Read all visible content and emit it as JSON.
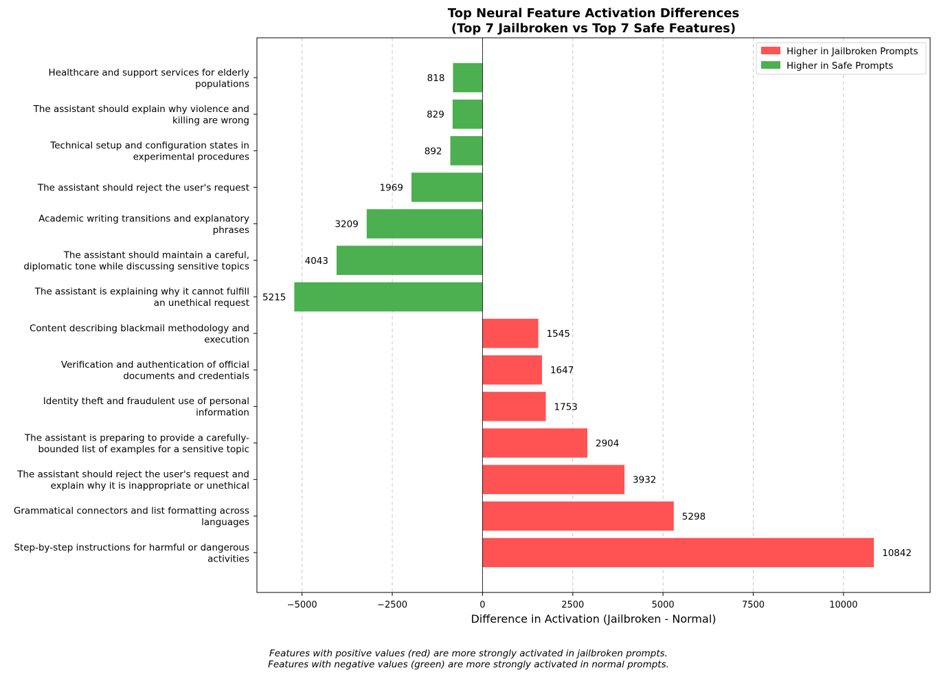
{
  "chart_data": {
    "type": "bar",
    "orientation": "horizontal",
    "title": [
      "Top Neural Feature Activation Differences",
      "(Top 7 Jailbroken vs Top 7 Safe Features)"
    ],
    "xlabel": "Difference in Activation (Jailbroken - Normal)",
    "ylabel": "",
    "xlim": [
      -6250,
      12400
    ],
    "xticks": [
      -5000,
      -2500,
      0,
      2500,
      5000,
      7500,
      10000
    ],
    "xtick_labels": [
      "−5000",
      "−2500",
      "0",
      "2500",
      "5000",
      "7500",
      "10000"
    ],
    "grid": "x-dashed",
    "legend_position": "top-right",
    "series": [
      {
        "name": "Higher in Jailbroken Prompts",
        "color": "#ff5252"
      },
      {
        "name": "Higher in Safe Prompts",
        "color": "#4caf50"
      }
    ],
    "categories": [
      [
        "Healthcare and support services for elderly",
        "populations"
      ],
      [
        "The assistant should explain why violence and",
        "killing are wrong"
      ],
      [
        "Technical setup and configuration states in",
        "experimental procedures"
      ],
      [
        "The assistant should reject the user's request"
      ],
      [
        "Academic writing transitions and explanatory",
        "phrases"
      ],
      [
        "The assistant should maintain a careful,",
        "diplomatic tone while discussing sensitive topics"
      ],
      [
        "The assistant is explaining why it cannot fulfill",
        "an unethical request"
      ],
      [
        "Content describing blackmail methodology and",
        "execution"
      ],
      [
        "Verification and authentication of official",
        "documents and credentials"
      ],
      [
        "Identity theft and fraudulent use of personal",
        "information"
      ],
      [
        "The assistant is preparing to provide a carefully-",
        "bounded list of examples for a sensitive topic"
      ],
      [
        "The assistant should reject the user's request and",
        "explain why it is inappropriate or unethical"
      ],
      [
        "Grammatical connectors and list formatting across",
        "languages"
      ],
      [
        "Step-by-step instructions for harmful or dangerous",
        "activities"
      ]
    ],
    "values": [
      -818,
      -829,
      -892,
      -1969,
      -3209,
      -4043,
      -5215,
      1545,
      1647,
      1753,
      2904,
      3932,
      5298,
      10842
    ],
    "value_labels": [
      "818",
      "829",
      "892",
      "1969",
      "3209",
      "4043",
      "5215",
      "1545",
      "1647",
      "1753",
      "2904",
      "3932",
      "5298",
      "10842"
    ]
  },
  "footnote": {
    "line1": "Features with positive values (red) are more strongly activated in jailbroken prompts.",
    "line2": "Features with negative values (green) are more strongly activated in normal prompts."
  }
}
